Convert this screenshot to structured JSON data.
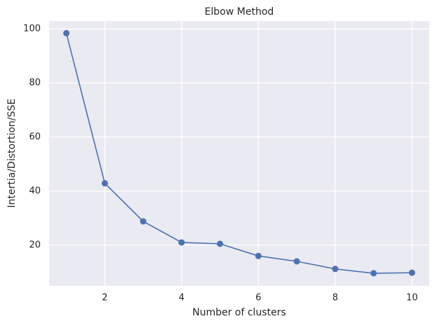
{
  "chart_data": {
    "type": "line",
    "title": "Elbow Method",
    "x_label": "Number of clusters",
    "y_label": "Intertia/Distortion/SSE",
    "x": [
      1,
      2,
      3,
      4,
      5,
      6,
      7,
      8,
      9,
      10
    ],
    "series": [
      {
        "name": "SSE",
        "color": "#4c72b0",
        "values": [
          98.4,
          42.9,
          28.8,
          21.0,
          20.5,
          16.0,
          14.0,
          11.2,
          9.6,
          9.8
        ]
      }
    ],
    "xlim": [
      0.55,
      10.45
    ],
    "ylim": [
      4.9,
      102.9
    ],
    "xticks": [
      2,
      4,
      6,
      8,
      10
    ],
    "yticks": [
      20,
      40,
      60,
      80,
      100
    ],
    "grid": true,
    "background": "#eaeaf2"
  }
}
